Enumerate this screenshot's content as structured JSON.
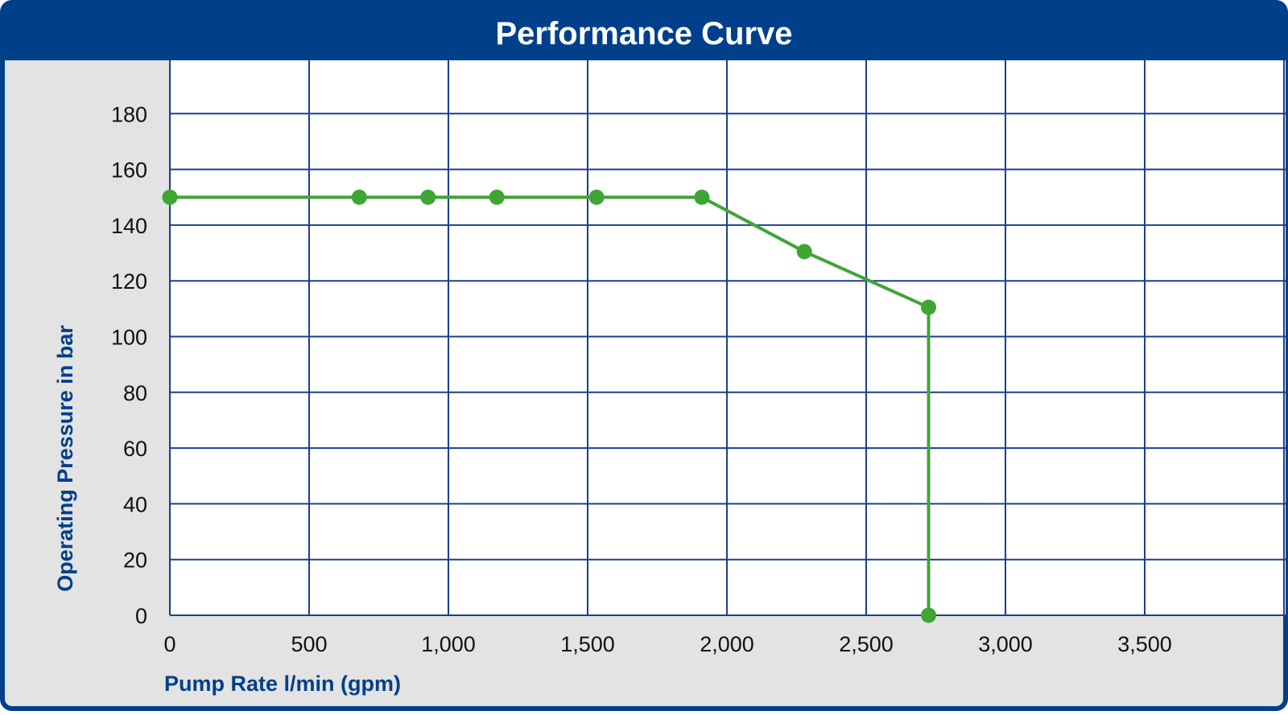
{
  "chart_data": {
    "type": "line",
    "title": "Performance Curve",
    "xlabel": "Pump Rate l/min (gpm)",
    "ylabel": "Operating Pressure in bar",
    "xlim": [
      0,
      4000
    ],
    "ylim": [
      0,
      200
    ],
    "x_ticks": [
      0,
      500,
      1000,
      1500,
      2000,
      2500,
      3000,
      3500
    ],
    "x_tick_labels": [
      "0",
      "500",
      "1,000",
      "1,500",
      "2,000",
      "2,500",
      "3,000",
      "3,500"
    ],
    "y_ticks": [
      0,
      20,
      40,
      60,
      80,
      100,
      120,
      140,
      160,
      180
    ],
    "y_tick_labels": [
      "0",
      "20",
      "40",
      "60",
      "80",
      "100",
      "120",
      "140",
      "160",
      "180"
    ],
    "grid": true,
    "series": [
      {
        "points": [
          {
            "x": 0,
            "y": 150
          },
          {
            "x": 680,
            "y": 150
          },
          {
            "x": 927,
            "y": 150
          },
          {
            "x": 1174,
            "y": 150
          },
          {
            "x": 1532,
            "y": 150
          },
          {
            "x": 1910,
            "y": 150
          },
          {
            "x": 2278,
            "y": 130.5
          },
          {
            "x": 2724,
            "y": 110.5
          },
          {
            "x": 2724,
            "y": 0
          }
        ]
      }
    ]
  },
  "colors": {
    "brand_blue": "#003f8a",
    "grid_blue": "#1a3f8f",
    "series_green": "#3fa535",
    "panel_gray": "#e3e3e3"
  }
}
